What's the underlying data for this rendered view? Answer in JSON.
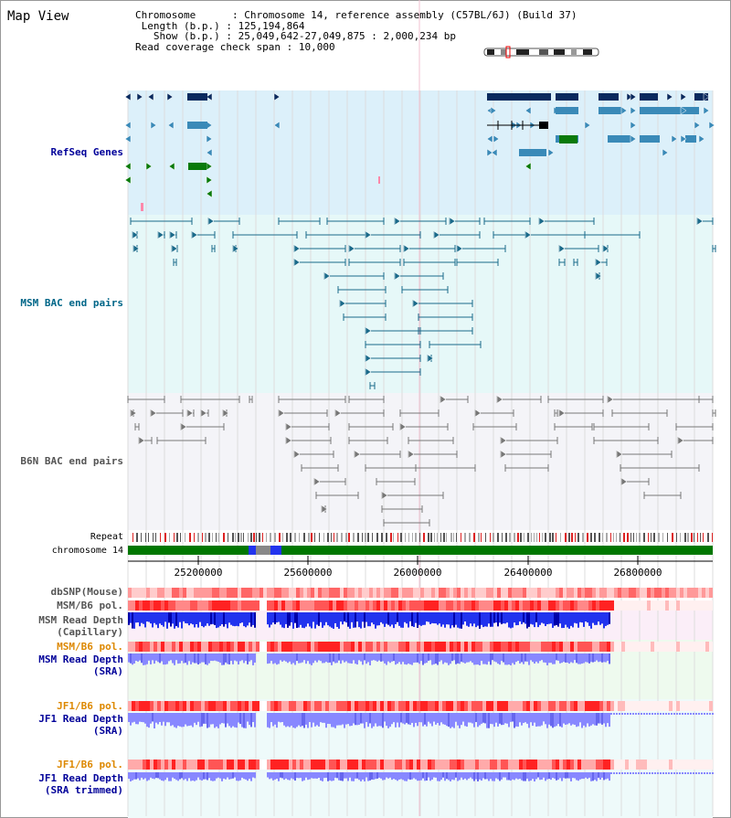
{
  "view_title": "Map View",
  "header": {
    "chromosome_key": "Chromosome",
    "chromosome_value": "Chromosome 14, reference assembly (C57BL/6J) (Build 37)",
    "length_key": "Length (b.p.)",
    "length_value": "125,194,864",
    "show_key": "Show (b.p.)",
    "show_value": "25,049,642-27,049,875 : 2,000,234 bp",
    "coverage_key": "Read coverage check span",
    "coverage_value": "10,000"
  },
  "tracks": {
    "refseq": "RefSeq Genes",
    "msm_bac": "MSM BAC end pairs",
    "b6n_bac": "B6N BAC end pairs",
    "repeat": "Repeat",
    "chromosome": "chromosome 14",
    "dbsnp": "dbSNP(Mouse)",
    "msm_b6_pol_1": "MSM/B6 pol.",
    "msm_depth_cap_1": "MSM Read Depth",
    "msm_depth_cap_2": "(Capillary)",
    "msm_b6_pol_2": "MSM/B6 pol.",
    "msm_depth_sra_1": "MSM Read Depth",
    "msm_depth_sra_2": "(SRA)",
    "jf1_pol_1": "JF1/B6 pol.",
    "jf1_depth_sra_1": "JF1 Read Depth",
    "jf1_depth_sra_2": "(SRA)",
    "jf1_pol_2": "JF1/B6 pol.",
    "jf1_depth_trim_1": "JF1 Read Depth",
    "jf1_depth_trim_2": "(SRA trimmed)"
  },
  "ruler": {
    "ticks": [
      "25200000",
      "25600000",
      "26000000",
      "26400000",
      "26800000"
    ]
  },
  "colors": {
    "refseq_bg": "#dcf0fa",
    "msm_bac_bg": "#e6f8f8",
    "b6n_bac_bg": "#f4f4f8",
    "dark_gene": "#0a2a5e",
    "mid_gene": "#3a8ab8",
    "green_gene": "#0a7a0a",
    "msm_bac_line": "#1a6a8a",
    "b6n_bac_line": "#777777",
    "navy_label": "#000099",
    "teal_label": "#006688",
    "gray_label": "#555555",
    "orange_label": "#dd8800",
    "snp_red": "#ee3333",
    "depth_blue": "#2233ee",
    "depth_light": "#8888ff"
  }
}
